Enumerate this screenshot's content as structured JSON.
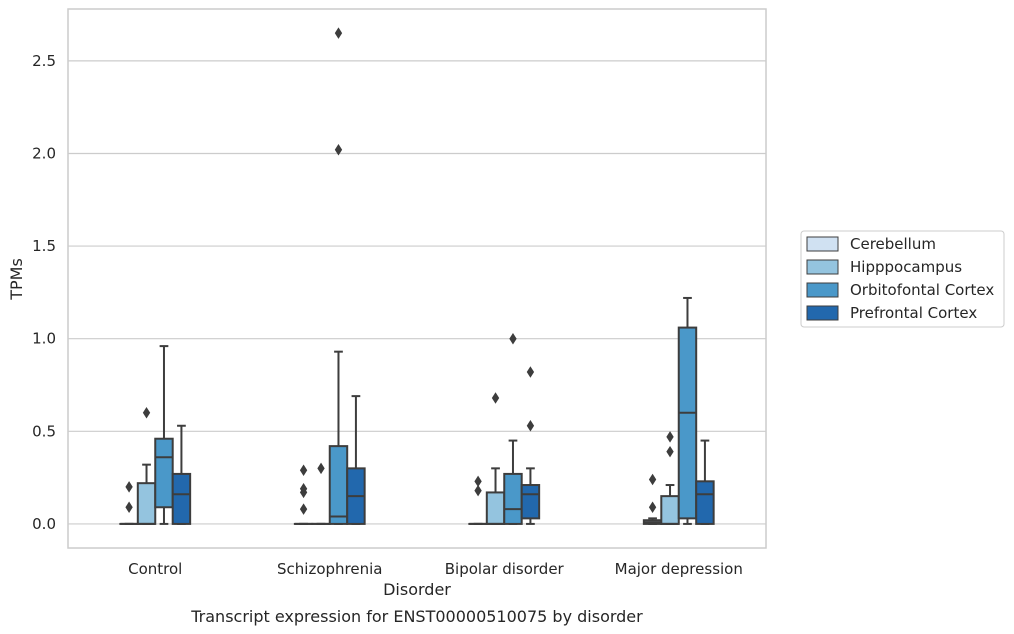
{
  "chart_data": {
    "type": "box",
    "title": "Transcript expression for ENST00000510075 by disorder",
    "xlabel": "Disorder",
    "ylabel": "TPMs",
    "ylim": [
      -0.13,
      2.78
    ],
    "yticks": [
      0.0,
      0.5,
      1.0,
      1.5,
      2.0,
      2.5
    ],
    "ytick_labels": [
      "0.0",
      "0.5",
      "1.0",
      "1.5",
      "2.0",
      "2.5"
    ],
    "categories": [
      "Control",
      "Schizophrenia",
      "Bipolar disorder",
      "Major depression"
    ],
    "grid": "horizontal",
    "legend_position": "right",
    "series": [
      {
        "name": "Cerebellum",
        "color": "#d0e1f2",
        "boxes": [
          {
            "q1": 0.0,
            "median": 0.0,
            "q3": 0.0,
            "whisker_low": 0.0,
            "whisker_high": 0.0,
            "outliers": [
              0.09,
              0.2
            ]
          },
          {
            "q1": 0.0,
            "median": 0.0,
            "q3": 0.0,
            "whisker_low": 0.0,
            "whisker_high": 0.0,
            "outliers": [
              0.08,
              0.17,
              0.19,
              0.29
            ]
          },
          {
            "q1": 0.0,
            "median": 0.0,
            "q3": 0.0,
            "whisker_low": 0.0,
            "whisker_high": 0.0,
            "outliers": [
              0.18,
              0.23
            ]
          },
          {
            "q1": 0.0,
            "median": 0.01,
            "q3": 0.02,
            "whisker_low": 0.0,
            "whisker_high": 0.03,
            "outliers": [
              0.09,
              0.24
            ]
          }
        ]
      },
      {
        "name": "Hipppocampus",
        "color": "#94c4df",
        "boxes": [
          {
            "q1": 0.0,
            "median": 0.0,
            "q3": 0.22,
            "whisker_low": 0.0,
            "whisker_high": 0.32,
            "outliers": [
              0.6
            ]
          },
          {
            "q1": 0.0,
            "median": 0.0,
            "q3": 0.0,
            "whisker_low": 0.0,
            "whisker_high": 0.0,
            "outliers": [
              0.3
            ]
          },
          {
            "q1": 0.0,
            "median": 0.0,
            "q3": 0.17,
            "whisker_low": 0.0,
            "whisker_high": 0.3,
            "outliers": [
              0.68
            ]
          },
          {
            "q1": 0.0,
            "median": 0.0,
            "q3": 0.15,
            "whisker_low": 0.0,
            "whisker_high": 0.21,
            "outliers": [
              0.39,
              0.47
            ]
          }
        ]
      },
      {
        "name": "Orbitofontal Cortex",
        "color": "#4a98c9",
        "boxes": [
          {
            "q1": 0.09,
            "median": 0.36,
            "q3": 0.46,
            "whisker_low": 0.0,
            "whisker_high": 0.96,
            "outliers": []
          },
          {
            "q1": 0.0,
            "median": 0.04,
            "q3": 0.42,
            "whisker_low": 0.0,
            "whisker_high": 0.93,
            "outliers": [
              2.02,
              2.65
            ]
          },
          {
            "q1": 0.0,
            "median": 0.08,
            "q3": 0.27,
            "whisker_low": 0.0,
            "whisker_high": 0.45,
            "outliers": [
              1.0
            ]
          },
          {
            "q1": 0.03,
            "median": 0.6,
            "q3": 1.06,
            "whisker_low": 0.0,
            "whisker_high": 1.22,
            "outliers": []
          }
        ]
      },
      {
        "name": "Prefrontal Cortex",
        "color": "#2268ad",
        "boxes": [
          {
            "q1": 0.0,
            "median": 0.16,
            "q3": 0.27,
            "whisker_low": 0.0,
            "whisker_high": 0.53,
            "outliers": []
          },
          {
            "q1": 0.0,
            "median": 0.15,
            "q3": 0.3,
            "whisker_low": 0.0,
            "whisker_high": 0.69,
            "outliers": []
          },
          {
            "q1": 0.03,
            "median": 0.16,
            "q3": 0.21,
            "whisker_low": 0.0,
            "whisker_high": 0.3,
            "outliers": [
              0.53,
              0.82
            ]
          },
          {
            "q1": 0.0,
            "median": 0.16,
            "q3": 0.23,
            "whisker_low": 0.0,
            "whisker_high": 0.45,
            "outliers": []
          }
        ]
      }
    ]
  },
  "colors": {
    "grid": "#cccccc",
    "frame": "#cccccc",
    "line": "#3d3d3d",
    "text": "#262626"
  }
}
